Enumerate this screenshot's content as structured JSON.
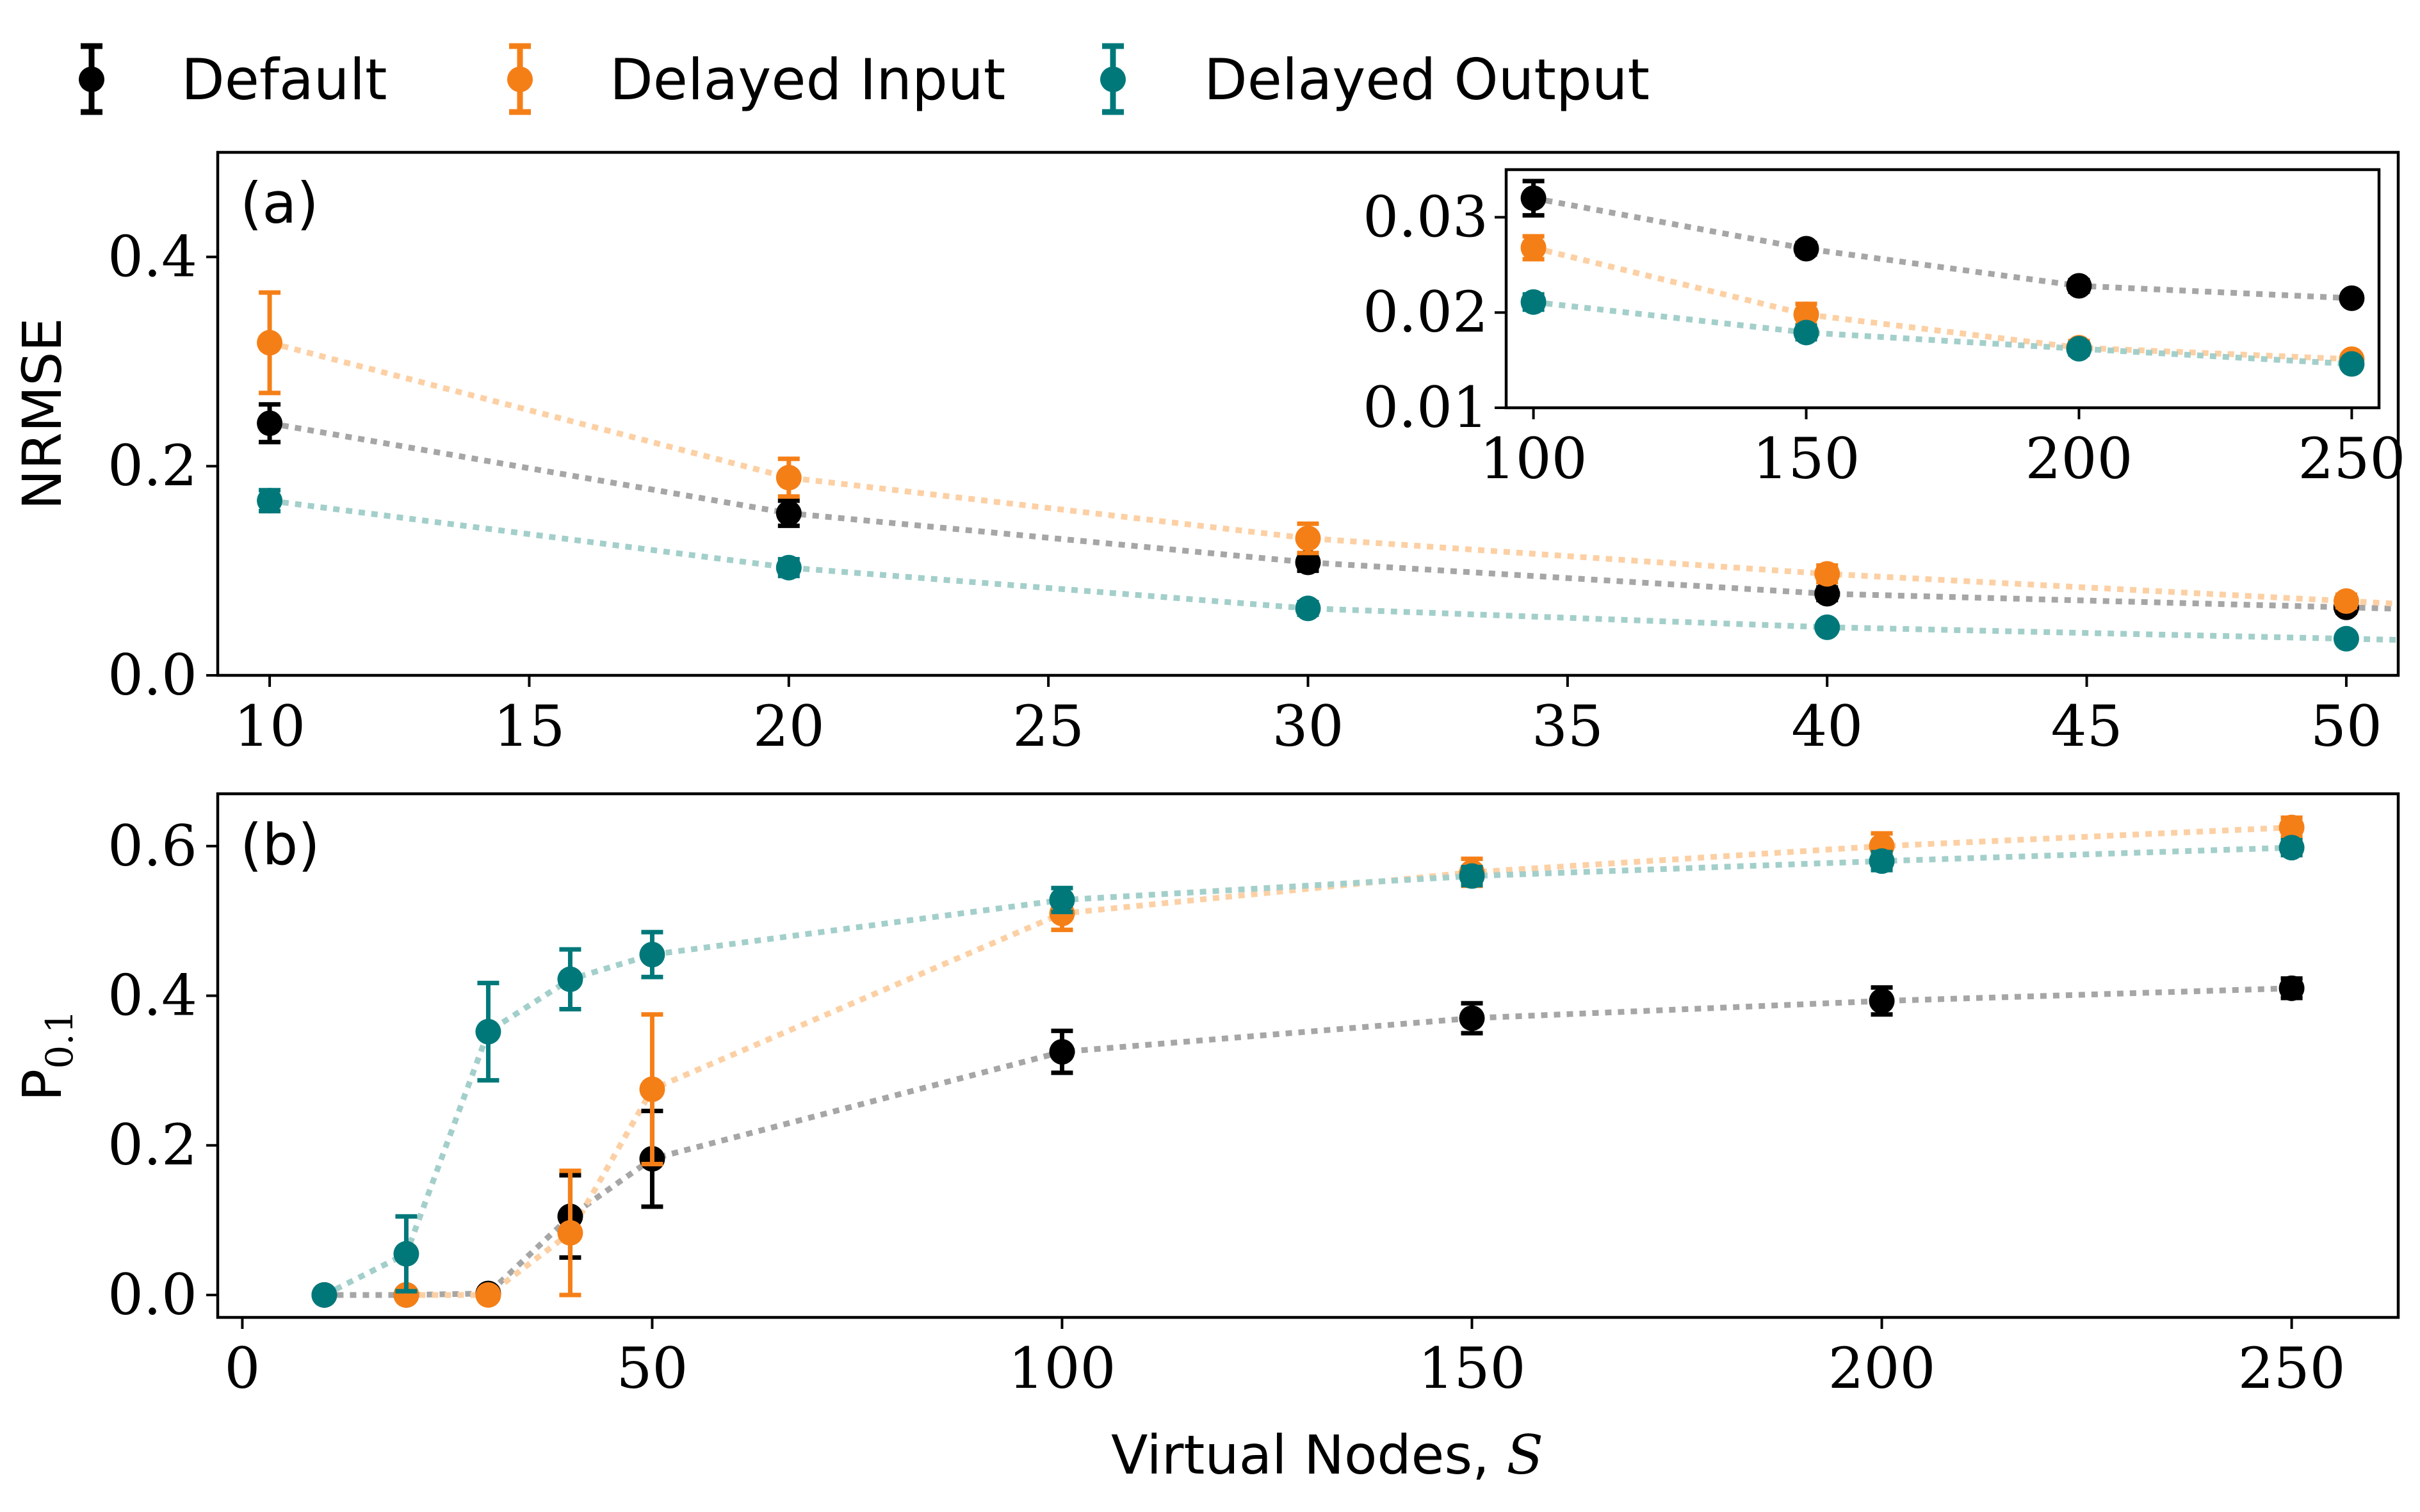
{
  "legend": [
    {
      "name": "Default",
      "color": "#000000",
      "line_color": "#a6a6a6"
    },
    {
      "name": "Delayed Input",
      "color": "#f57f17",
      "line_color": "#fcd0a4"
    },
    {
      "name": "Delayed Output",
      "color": "#00787a",
      "line_color": "#a3cfca"
    }
  ],
  "chart_data": [
    {
      "id": "a",
      "type": "line",
      "panel_label": "(a)",
      "xlabel": "",
      "ylabel": "NRMSE",
      "xlim": [
        9,
        51
      ],
      "ylim": [
        0,
        0.5
      ],
      "xticks": [
        10,
        15,
        20,
        25,
        30,
        35,
        40,
        45,
        50
      ],
      "yticks": [
        0.0,
        0.2,
        0.4
      ],
      "xtick_labels": [
        "10",
        "15",
        "20",
        "25",
        "30",
        "35",
        "40",
        "45",
        "50"
      ],
      "ytick_labels": [
        "0.0",
        "0.2",
        "0.4"
      ],
      "x": [
        10,
        20,
        30,
        40,
        50
      ],
      "series": [
        {
          "name": "Default",
          "values": [
            0.241,
            0.155,
            0.108,
            0.078,
            0.065
          ],
          "errors": [
            0.018,
            0.012,
            0.008,
            0.006,
            0.005
          ]
        },
        {
          "name": "Delayed Input",
          "values": [
            0.318,
            0.189,
            0.131,
            0.097,
            0.071
          ],
          "errors": [
            0.048,
            0.018,
            0.014,
            0.008,
            0.006
          ]
        },
        {
          "name": "Delayed Output",
          "values": [
            0.167,
            0.103,
            0.064,
            0.046,
            0.035
          ],
          "errors": [
            0.01,
            0.008,
            0.006,
            0.004,
            0.004
          ]
        }
      ],
      "line_extension_to": 51,
      "inset": {
        "xlim": [
          95,
          255
        ],
        "ylim": [
          0.01,
          0.035
        ],
        "xticks": [
          100,
          150,
          200,
          250
        ],
        "yticks": [
          0.01,
          0.02,
          0.03
        ],
        "xtick_labels": [
          "100",
          "150",
          "200",
          "250"
        ],
        "ytick_labels": [
          "0.01",
          "0.02",
          "0.03"
        ],
        "x": [
          100,
          150,
          200,
          250
        ],
        "series": [
          {
            "name": "Default",
            "values": [
              0.032,
              0.0267,
              0.0228,
              0.0215
            ],
            "errors": [
              0.0018,
              0.0006,
              0.0006,
              0.0005
            ]
          },
          {
            "name": "Delayed Input",
            "values": [
              0.0268,
              0.0198,
              0.0163,
              0.0151
            ],
            "errors": [
              0.0012,
              0.0011,
              0.0007,
              0.0005
            ]
          },
          {
            "name": "Delayed Output",
            "values": [
              0.0211,
              0.0179,
              0.0162,
              0.0146
            ],
            "errors": [
              0.0008,
              0.0007,
              0.0006,
              0.0005
            ]
          }
        ]
      }
    },
    {
      "id": "b",
      "type": "line",
      "panel_label": "(b)",
      "xlabel": "Virtual Nodes, ",
      "xlabel_symbol": "S",
      "ylabel": "P",
      "ylabel_sub": "0.1",
      "xlim": [
        -3,
        263
      ],
      "ylim": [
        -0.03,
        0.67
      ],
      "xticks": [
        0,
        50,
        100,
        150,
        200,
        250
      ],
      "yticks": [
        0.0,
        0.2,
        0.4,
        0.6
      ],
      "xtick_labels": [
        "0",
        "50",
        "100",
        "150",
        "200",
        "250"
      ],
      "ytick_labels": [
        "0.0",
        "0.2",
        "0.4",
        "0.6"
      ],
      "series": [
        {
          "name": "Default",
          "x": [
            10,
            20,
            30,
            40,
            50,
            100,
            150,
            200,
            250
          ],
          "values": [
            0.0,
            0.0,
            0.002,
            0.105,
            0.182,
            0.325,
            0.37,
            0.393,
            0.41
          ],
          "errors": [
            0,
            0,
            0.002,
            0.055,
            0.064,
            0.028,
            0.02,
            0.018,
            0.013
          ]
        },
        {
          "name": "Delayed Input",
          "x": [
            20,
            30,
            40,
            50,
            100,
            150,
            200,
            250
          ],
          "values": [
            0.0,
            0.0,
            0.083,
            0.275,
            0.51,
            0.565,
            0.6,
            0.625
          ],
          "errors": [
            0,
            0,
            0.083,
            0.1,
            0.022,
            0.018,
            0.017,
            0.013
          ]
        },
        {
          "name": "Delayed Output",
          "x": [
            10,
            20,
            30,
            40,
            50,
            100,
            150,
            200,
            250
          ],
          "values": [
            0.0,
            0.055,
            0.352,
            0.422,
            0.455,
            0.528,
            0.56,
            0.58,
            0.598
          ],
          "errors": [
            0,
            0.05,
            0.065,
            0.04,
            0.03,
            0.016,
            0.012,
            0.012,
            0.01
          ]
        }
      ]
    }
  ]
}
